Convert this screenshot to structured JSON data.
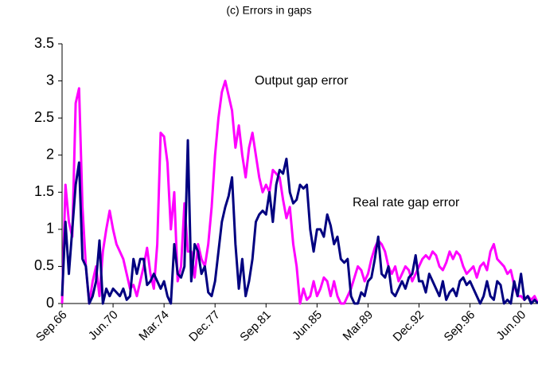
{
  "chart_data": {
    "type": "line",
    "title": "(c) Errors in gaps",
    "categories": [
      "Sep.66",
      null,
      null,
      null,
      null,
      null,
      null,
      null,
      null,
      null,
      null,
      null,
      null,
      null,
      null,
      "Jun.70",
      null,
      null,
      null,
      null,
      null,
      null,
      null,
      null,
      null,
      null,
      null,
      null,
      null,
      null,
      "Mar.74",
      null,
      null,
      null,
      null,
      null,
      null,
      null,
      null,
      null,
      null,
      null,
      null,
      null,
      null,
      "Dec.77",
      null,
      null,
      null,
      null,
      null,
      null,
      null,
      null,
      null,
      null,
      null,
      null,
      null,
      null,
      "Sep.81",
      null,
      null,
      null,
      null,
      null,
      null,
      null,
      null,
      null,
      null,
      null,
      null,
      null,
      null,
      "Jun.85",
      null,
      null,
      null,
      null,
      null,
      null,
      null,
      null,
      null,
      null,
      null,
      null,
      null,
      null,
      "Mar.89",
      null,
      null,
      null,
      null,
      null,
      null,
      null,
      null,
      null,
      null,
      null,
      null,
      null,
      null,
      "Dec.92",
      null,
      null,
      null,
      null,
      null,
      null,
      null,
      null,
      null,
      null,
      null,
      null,
      null,
      null,
      "Sep.96",
      null,
      null,
      null,
      null,
      null,
      null,
      null,
      null,
      null,
      null,
      null,
      null,
      null,
      null,
      "Jun.00",
      null,
      null,
      null,
      null,
      null
    ],
    "series": [
      {
        "name": "Output gap error",
        "color": "#ff00ff",
        "values": [
          0,
          1.6,
          1.1,
          0.9,
          2.7,
          2.9,
          1.3,
          0.5,
          0,
          0.3,
          0.5,
          0.1,
          0.7,
          1.0,
          1.25,
          1.0,
          0.8,
          0.7,
          0.6,
          0.4,
          0.2,
          0.25,
          0.1,
          0.3,
          0.5,
          0.75,
          0.4,
          0.2,
          0.8,
          2.3,
          2.25,
          1.9,
          1.0,
          1.5,
          0.3,
          0.5,
          1.35,
          0.7,
          0.7,
          0.35,
          0.8,
          0.6,
          0.5,
          0.8,
          1.3,
          2.0,
          2.5,
          2.85,
          3.0,
          2.8,
          2.6,
          2.1,
          2.4,
          2.0,
          1.7,
          2.1,
          2.3,
          2.0,
          1.7,
          1.5,
          1.6,
          1.5,
          1.8,
          1.75,
          1.7,
          1.4,
          1.15,
          1.3,
          0.8,
          0.5,
          0,
          0.2,
          0.05,
          0.1,
          0.3,
          0.1,
          0.2,
          0.35,
          0.3,
          0.1,
          0.3,
          0.1,
          0,
          0,
          0.1,
          0.2,
          0.35,
          0.5,
          0.45,
          0.3,
          0.4,
          0.6,
          0.75,
          0.85,
          0.8,
          0.7,
          0.5,
          0.4,
          0.5,
          0.3,
          0.4,
          0.5,
          0.45,
          0.3,
          0.4,
          0.5,
          0.6,
          0.65,
          0.6,
          0.7,
          0.65,
          0.5,
          0.45,
          0.55,
          0.7,
          0.6,
          0.7,
          0.65,
          0.5,
          0.4,
          0.45,
          0.5,
          0.35,
          0.5,
          0.55,
          0.45,
          0.7,
          0.8,
          0.6,
          0.55,
          0.5,
          0.4,
          0.45,
          0.25,
          0.1,
          0.1,
          0.05,
          0.1,
          0.05,
          0.1,
          0
        ]
      },
      {
        "name": "Real rate gap error",
        "color": "#000080",
        "values": [
          0.1,
          1.1,
          0.4,
          1.0,
          1.6,
          1.9,
          0.6,
          0.5,
          0,
          0.1,
          0.3,
          0.85,
          0,
          0.2,
          0.1,
          0.2,
          0.15,
          0.1,
          0.2,
          0.05,
          0.1,
          0.6,
          0.4,
          0.6,
          0.6,
          0.25,
          0.3,
          0.4,
          0.3,
          0.2,
          0.3,
          0.1,
          0,
          0.8,
          0.4,
          0.35,
          0.5,
          2.2,
          0.3,
          0.8,
          0.7,
          0.4,
          0.5,
          0.15,
          0.1,
          0.3,
          0.7,
          1.1,
          1.3,
          1.45,
          1.7,
          0.8,
          0.2,
          0.6,
          0.1,
          0.3,
          0.6,
          1.1,
          1.2,
          1.25,
          1.2,
          1.5,
          1.1,
          1.6,
          1.8,
          1.75,
          1.95,
          1.5,
          1.35,
          1.4,
          1.6,
          1.55,
          1.6,
          1.0,
          0.7,
          1.0,
          1.0,
          0.9,
          1.2,
          1.05,
          0.8,
          0.9,
          0.6,
          0.55,
          0.6,
          0.1,
          0,
          0,
          0.15,
          0.1,
          0.3,
          0.35,
          0.6,
          0.9,
          0.4,
          0.35,
          0.5,
          0.15,
          0.1,
          0.2,
          0.3,
          0.2,
          0.35,
          0.4,
          0.65,
          0.3,
          0.3,
          0.15,
          0.4,
          0.3,
          0.2,
          0.1,
          0.3,
          0.05,
          0.15,
          0.2,
          0.1,
          0.3,
          0.35,
          0.25,
          0.3,
          0.2,
          0.1,
          0,
          0.1,
          0.3,
          0.1,
          0.05,
          0.3,
          0.25,
          0,
          0.05,
          0,
          0.3,
          0.1,
          0.4,
          0.05,
          0.1,
          0,
          0.05,
          0
        ]
      }
    ],
    "ylim": [
      0,
      3.5
    ],
    "yticks": [
      0,
      0.5,
      1,
      1.5,
      2,
      2.5,
      3,
      3.5
    ]
  }
}
